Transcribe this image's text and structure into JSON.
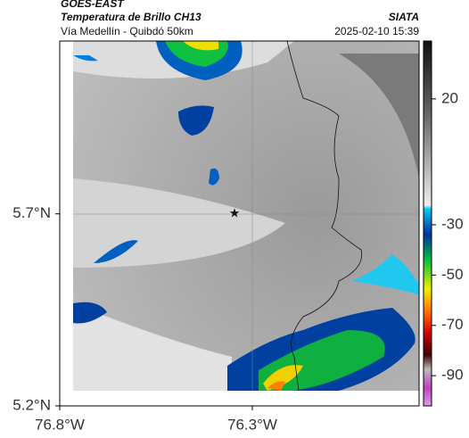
{
  "header": {
    "title": "GOES-EAST",
    "subtitle": "Temperatura de Brillo CH13",
    "route": "Vía Medellín - Quibdó 50km",
    "source": "SIATA",
    "datetime": "2025-02-10 15:39"
  },
  "map": {
    "xlim": [
      -76.8,
      -75.867
    ],
    "ylim": [
      5.2,
      6.15
    ],
    "xticks": [
      {
        "value": -76.8,
        "label": "76.8°W"
      },
      {
        "value": -76.3,
        "label": "76.3°W"
      }
    ],
    "yticks": [
      {
        "value": 5.7,
        "label": "5.7°N"
      },
      {
        "value": 5.2,
        "label": "5.2°N"
      }
    ]
  },
  "colorbar": {
    "clim": [
      43,
      -102
    ],
    "ticks": [
      20,
      -30,
      -50,
      -70,
      -90
    ]
  }
}
